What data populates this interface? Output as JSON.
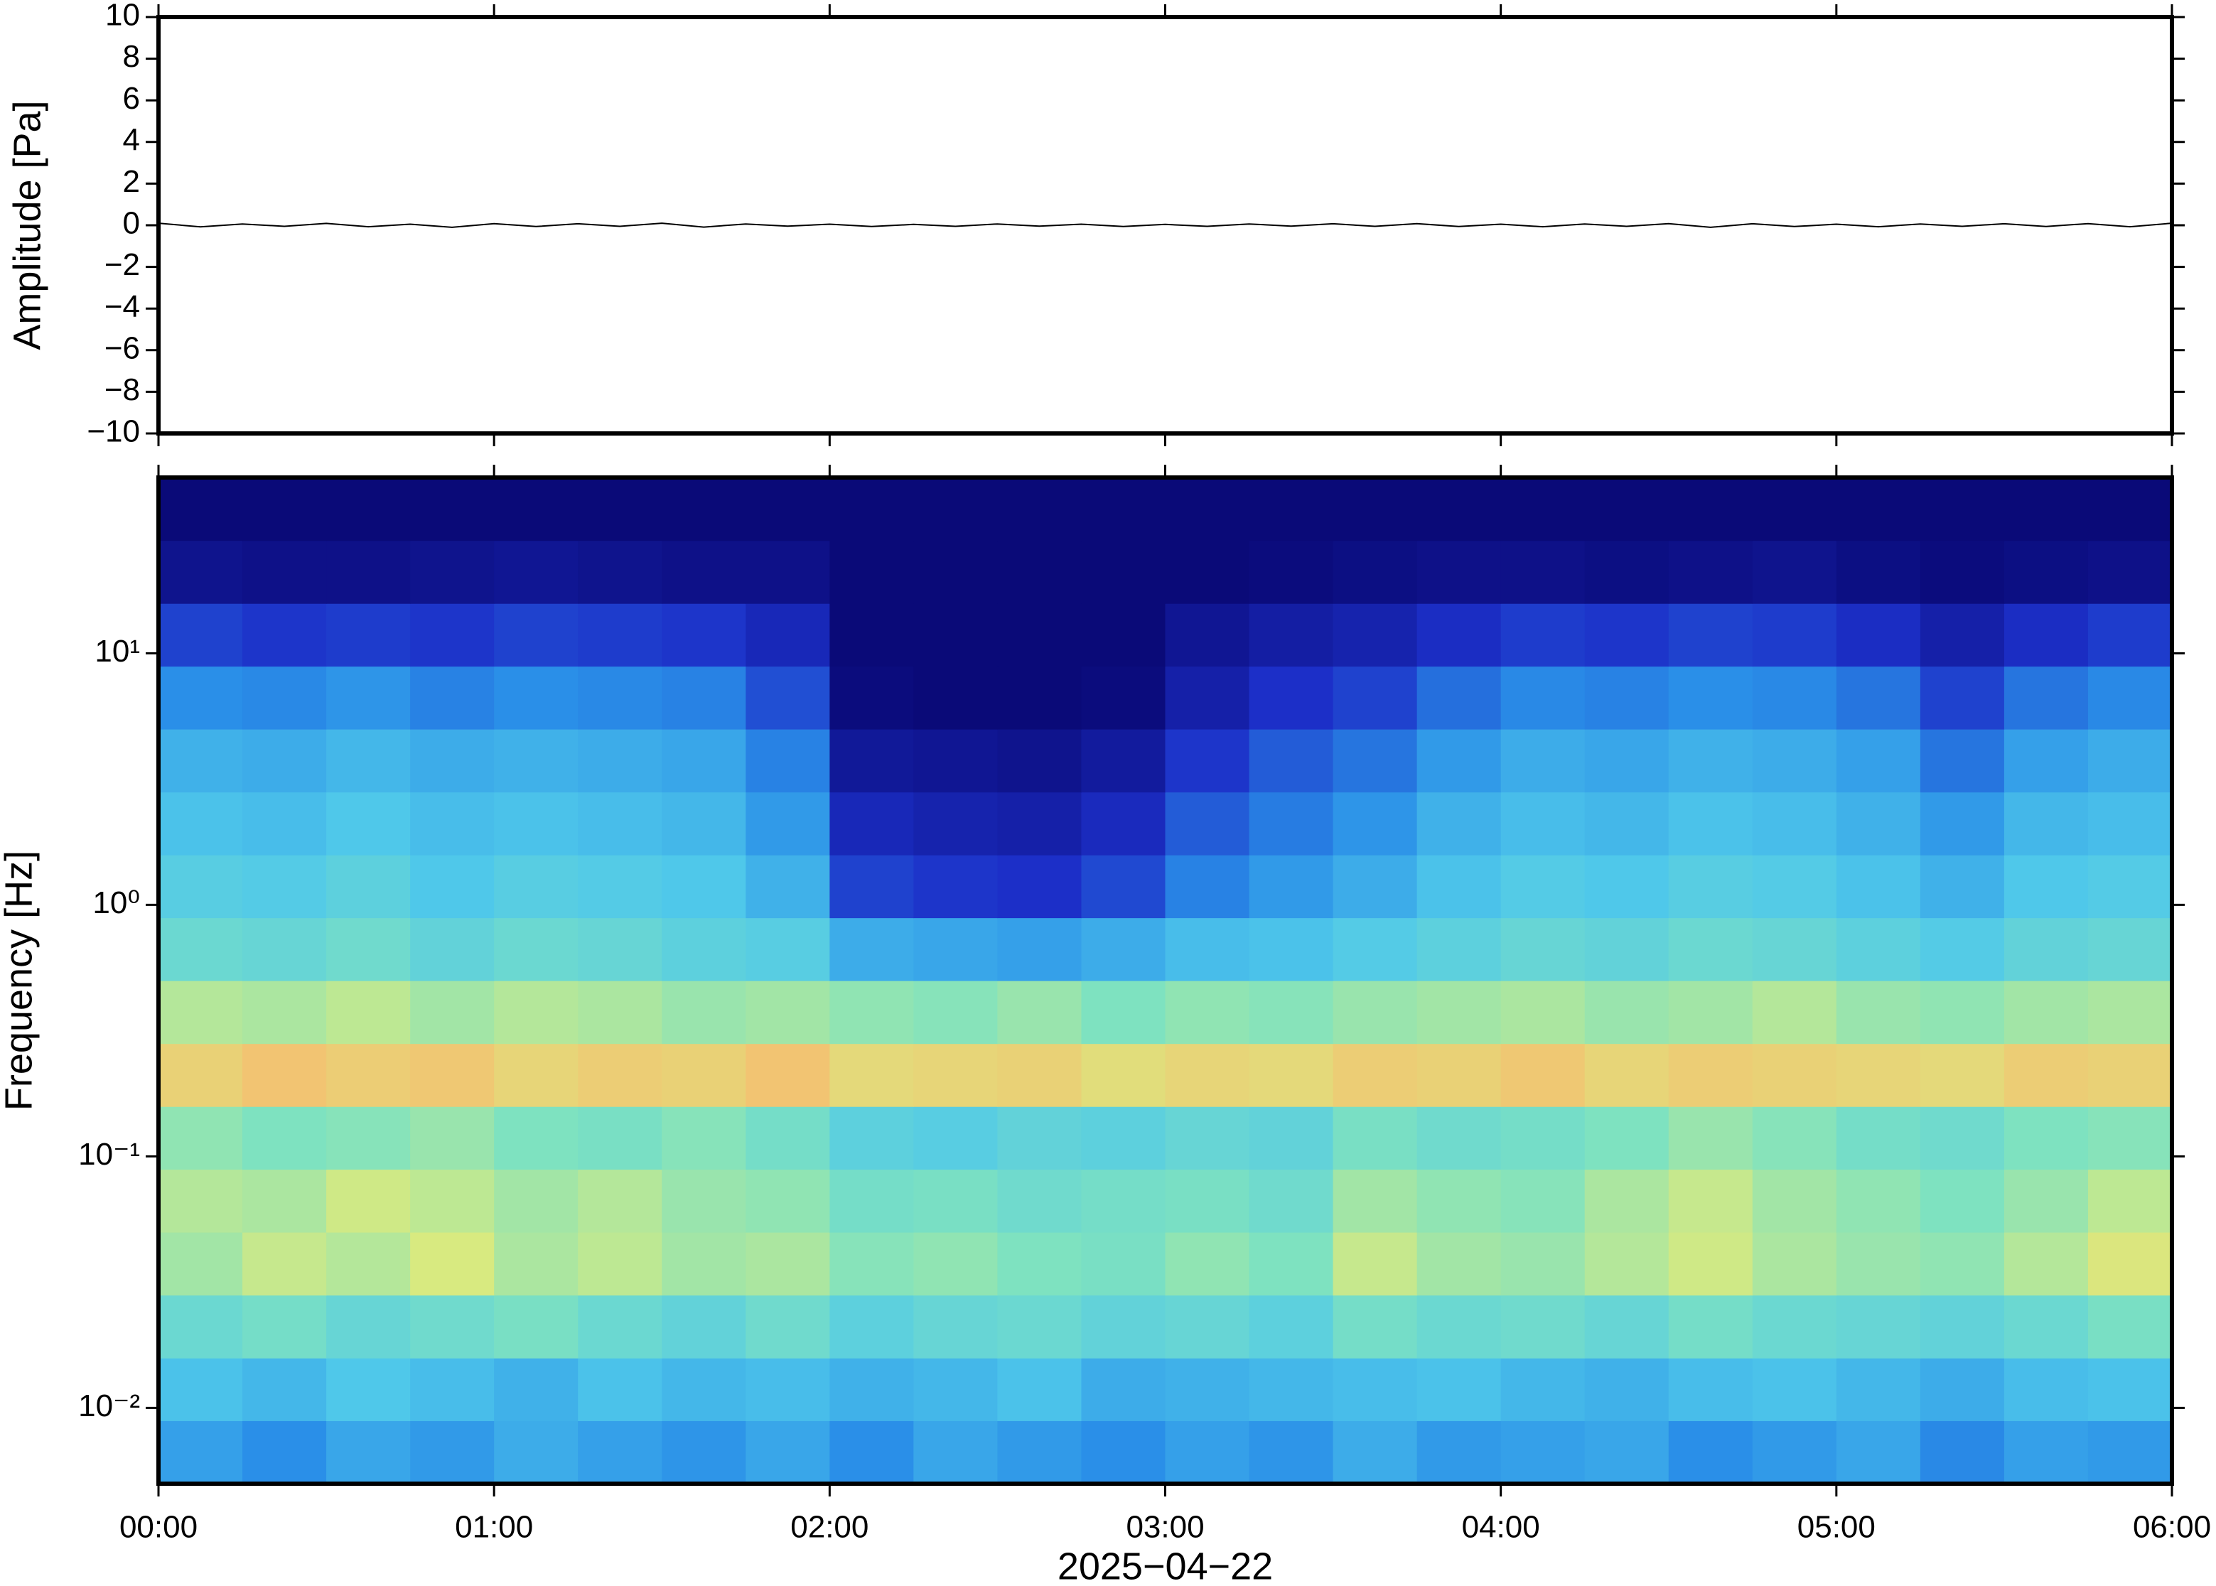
{
  "chart_data": [
    {
      "type": "line",
      "ylabel": "Amplitude [Pa]",
      "color": "#000000",
      "x": [
        0,
        0.125,
        0.25,
        0.375,
        0.5,
        0.625,
        0.75,
        0.875,
        1,
        1.125,
        1.25,
        1.375,
        1.5,
        1.625,
        1.75,
        1.875,
        2,
        2.125,
        2.25,
        2.375,
        2.5,
        2.625,
        2.75,
        2.875,
        3,
        3.125,
        3.25,
        3.375,
        3.5,
        3.625,
        3.75,
        3.875,
        4,
        4.125,
        4.25,
        4.375,
        4.5,
        4.625,
        4.75,
        4.875,
        5,
        5.125,
        5.25,
        5.375,
        5.5,
        5.625,
        5.75,
        5.875,
        6
      ],
      "values": [
        0.1,
        -0.08,
        0.06,
        -0.05,
        0.09,
        -0.07,
        0.05,
        -0.1,
        0.08,
        -0.06,
        0.07,
        -0.05,
        0.1,
        -0.09,
        0.06,
        -0.04,
        0.05,
        -0.06,
        0.04,
        -0.05,
        0.06,
        -0.04,
        0.05,
        -0.06,
        0.04,
        -0.05,
        0.06,
        -0.04,
        0.07,
        -0.05,
        0.08,
        -0.06,
        0.05,
        -0.07,
        0.06,
        -0.05,
        0.08,
        -0.1,
        0.07,
        -0.06,
        0.05,
        -0.07,
        0.06,
        -0.05,
        0.07,
        -0.06,
        0.08,
        -0.07,
        0.1
      ],
      "xlim": [
        0,
        6
      ],
      "xticks": [
        0,
        1,
        2,
        3,
        4,
        5,
        6
      ],
      "ylim": [
        -10,
        10
      ],
      "yticks": [
        {
          "value": -10,
          "label": "−10"
        },
        {
          "value": -8,
          "label": "−8"
        },
        {
          "value": -6,
          "label": "−6"
        },
        {
          "value": -4,
          "label": "−4"
        },
        {
          "value": -2,
          "label": "−2"
        },
        0,
        2,
        4,
        6,
        8,
        10
      ]
    },
    {
      "type": "heatmap",
      "ylabel": "Frequency [Hz]",
      "xlabel": "2025−04−22",
      "ylog": true,
      "xlim": [
        0,
        6
      ],
      "xticks": [
        {
          "value": 0,
          "label": "00:00"
        },
        {
          "value": 1,
          "label": "01:00"
        },
        {
          "value": 2,
          "label": "02:00"
        },
        {
          "value": 3,
          "label": "03:00"
        },
        {
          "value": 4,
          "label": "04:00"
        },
        {
          "value": 5,
          "label": "05:00"
        },
        {
          "value": 6,
          "label": "06:00"
        }
      ],
      "ylim": [
        0.005,
        50
      ],
      "yticks": [
        {
          "value": 0.01,
          "label": "10⁻²"
        },
        {
          "value": 0.1,
          "label": "10⁻¹"
        },
        {
          "value": 1,
          "label": "10⁰"
        },
        {
          "value": 10,
          "label": "10¹"
        }
      ],
      "xbins": [
        0,
        0.25,
        0.5,
        0.75,
        1,
        1.25,
        1.5,
        1.75,
        2,
        2.25,
        2.5,
        2.75,
        3,
        3.25,
        3.5,
        3.75,
        4,
        4.25,
        4.5,
        4.75,
        5,
        5.25,
        5.5,
        5.75,
        6
      ],
      "ybins": [
        0.005,
        0.0089,
        0.0158,
        0.0281,
        0.05,
        0.0889,
        0.158,
        0.281,
        0.5,
        0.889,
        1.58,
        2.81,
        5,
        8.89,
        15.8,
        28.1,
        50
      ],
      "zlim": [
        0,
        10
      ],
      "colorscale": [
        [
          0,
          "#0a0a78"
        ],
        [
          1.5,
          "#1c2fc8"
        ],
        [
          3,
          "#2a8fe8"
        ],
        [
          4,
          "#4fc8ea"
        ],
        [
          5,
          "#7ee2c0"
        ],
        [
          6,
          "#d8ea80"
        ],
        [
          7,
          "#f5c070"
        ],
        [
          10,
          "#d03020"
        ]
      ],
      "z": [
        [
          3.3,
          3.0,
          3.4,
          3.2,
          3.5,
          3.3,
          3.1,
          3.4,
          3.0,
          3.4,
          3.2,
          3.0,
          3.3,
          3.1,
          3.5,
          3.2,
          3.3,
          3.4,
          3.0,
          3.2,
          3.4,
          2.9,
          3.3,
          3.2
        ],
        [
          3.9,
          3.7,
          4.0,
          3.8,
          3.6,
          3.9,
          3.7,
          3.8,
          3.6,
          3.7,
          3.9,
          3.5,
          3.6,
          3.7,
          3.8,
          3.9,
          3.7,
          3.6,
          3.8,
          3.9,
          3.7,
          3.5,
          3.8,
          3.9
        ],
        [
          4.6,
          4.8,
          4.5,
          4.7,
          4.9,
          4.6,
          4.4,
          4.7,
          4.3,
          4.5,
          4.6,
          4.4,
          4.5,
          4.3,
          4.8,
          4.6,
          4.7,
          4.5,
          4.8,
          4.6,
          4.5,
          4.4,
          4.6,
          4.9
        ],
        [
          5.4,
          5.8,
          5.6,
          6.0,
          5.5,
          5.7,
          5.4,
          5.5,
          5.1,
          5.2,
          5.0,
          4.9,
          5.2,
          5.0,
          5.8,
          5.4,
          5.3,
          5.6,
          5.9,
          5.5,
          5.3,
          5.2,
          5.6,
          6.1
        ],
        [
          5.6,
          5.5,
          5.9,
          5.7,
          5.4,
          5.6,
          5.3,
          5.2,
          4.8,
          4.9,
          4.7,
          4.8,
          4.9,
          4.7,
          5.4,
          5.2,
          5.1,
          5.5,
          5.8,
          5.4,
          5.2,
          5.0,
          5.3,
          5.7
        ],
        [
          5.2,
          5.0,
          5.1,
          5.3,
          5.0,
          4.9,
          5.1,
          4.8,
          4.3,
          4.2,
          4.4,
          4.3,
          4.5,
          4.4,
          4.9,
          4.7,
          4.8,
          5.0,
          5.3,
          5.1,
          4.8,
          4.7,
          5.0,
          5.1
        ],
        [
          6.6,
          6.9,
          6.7,
          6.8,
          6.5,
          6.7,
          6.6,
          6.9,
          6.4,
          6.5,
          6.6,
          6.3,
          6.5,
          6.4,
          6.7,
          6.6,
          6.8,
          6.5,
          6.7,
          6.6,
          6.5,
          6.4,
          6.7,
          6.6
        ],
        [
          5.6,
          5.5,
          5.7,
          5.4,
          5.6,
          5.5,
          5.3,
          5.4,
          5.2,
          5.1,
          5.3,
          5.0,
          5.2,
          5.1,
          5.3,
          5.4,
          5.5,
          5.3,
          5.4,
          5.6,
          5.3,
          5.2,
          5.4,
          5.5
        ],
        [
          4.6,
          4.5,
          4.7,
          4.4,
          4.6,
          4.5,
          4.3,
          4.2,
          3.5,
          3.4,
          3.3,
          3.5,
          3.8,
          3.9,
          4.1,
          4.3,
          4.5,
          4.4,
          4.6,
          4.5,
          4.3,
          4.1,
          4.4,
          4.5
        ],
        [
          4.2,
          4.1,
          4.3,
          4.0,
          4.2,
          4.1,
          4.0,
          3.6,
          1.8,
          1.6,
          1.5,
          1.9,
          2.8,
          3.2,
          3.5,
          3.9,
          4.1,
          4.0,
          4.2,
          4.1,
          3.9,
          3.6,
          4.0,
          4.1
        ],
        [
          3.9,
          3.8,
          4.0,
          3.8,
          3.9,
          3.8,
          3.7,
          3.2,
          1.2,
          1.0,
          0.9,
          1.3,
          2.2,
          2.7,
          3.1,
          3.6,
          3.8,
          3.7,
          3.9,
          3.8,
          3.6,
          3.2,
          3.7,
          3.8
        ],
        [
          3.6,
          3.5,
          3.7,
          3.5,
          3.6,
          3.5,
          3.4,
          2.8,
          0.6,
          0.5,
          0.4,
          0.7,
          1.6,
          2.2,
          2.6,
          3.2,
          3.5,
          3.4,
          3.6,
          3.5,
          3.3,
          2.6,
          3.3,
          3.5
        ],
        [
          3.0,
          2.9,
          3.1,
          2.8,
          3.0,
          2.9,
          2.8,
          2.0,
          0.1,
          0,
          0,
          0.1,
          0.9,
          1.5,
          1.8,
          2.5,
          2.9,
          2.8,
          3.0,
          2.9,
          2.6,
          1.8,
          2.6,
          2.9
        ],
        [
          1.8,
          1.6,
          1.7,
          1.6,
          1.8,
          1.7,
          1.6,
          1.2,
          0,
          0,
          0,
          0,
          0.5,
          0.8,
          1.0,
          1.4,
          1.7,
          1.6,
          1.8,
          1.7,
          1.4,
          0.9,
          1.4,
          1.7
        ],
        [
          0.4,
          0.3,
          0.3,
          0.4,
          0.5,
          0.4,
          0.3,
          0.3,
          0,
          0,
          0,
          0,
          0,
          0.1,
          0.2,
          0.3,
          0.3,
          0.2,
          0.3,
          0.4,
          0.2,
          0.1,
          0.2,
          0.3
        ],
        [
          0,
          0,
          0,
          0,
          0,
          0,
          0,
          0,
          0,
          0,
          0,
          0,
          0,
          0,
          0,
          0,
          0,
          0,
          0,
          0,
          0,
          0,
          0,
          0
        ]
      ]
    }
  ]
}
